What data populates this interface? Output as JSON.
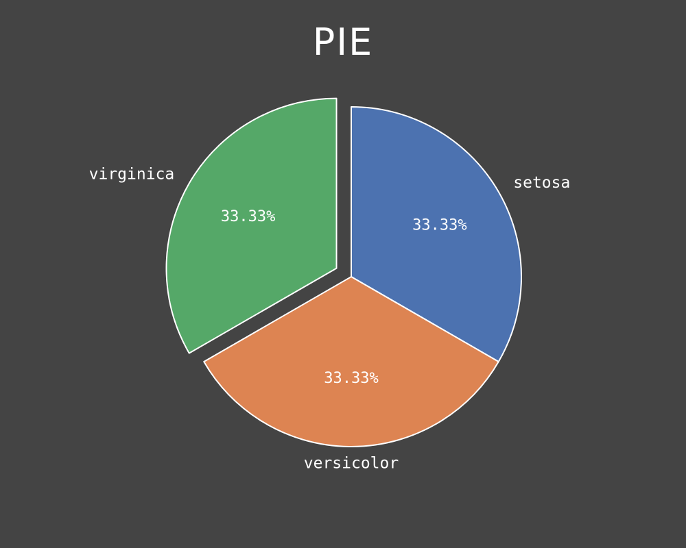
{
  "chart_data": {
    "type": "pie",
    "title": "PIE",
    "labels": [
      "setosa",
      "versicolor",
      "virginica"
    ],
    "values": [
      33.33,
      33.33,
      33.33
    ],
    "value_labels": [
      "33.33%",
      "33.33%",
      "33.33%"
    ],
    "colors": [
      "#4c72b0",
      "#dd8452",
      "#55a868"
    ],
    "explode": [
      0,
      0,
      0.1
    ],
    "start_angle_deg": 90,
    "direction": "clockwise",
    "edge_color": "#ffffff",
    "background": "#444444"
  }
}
